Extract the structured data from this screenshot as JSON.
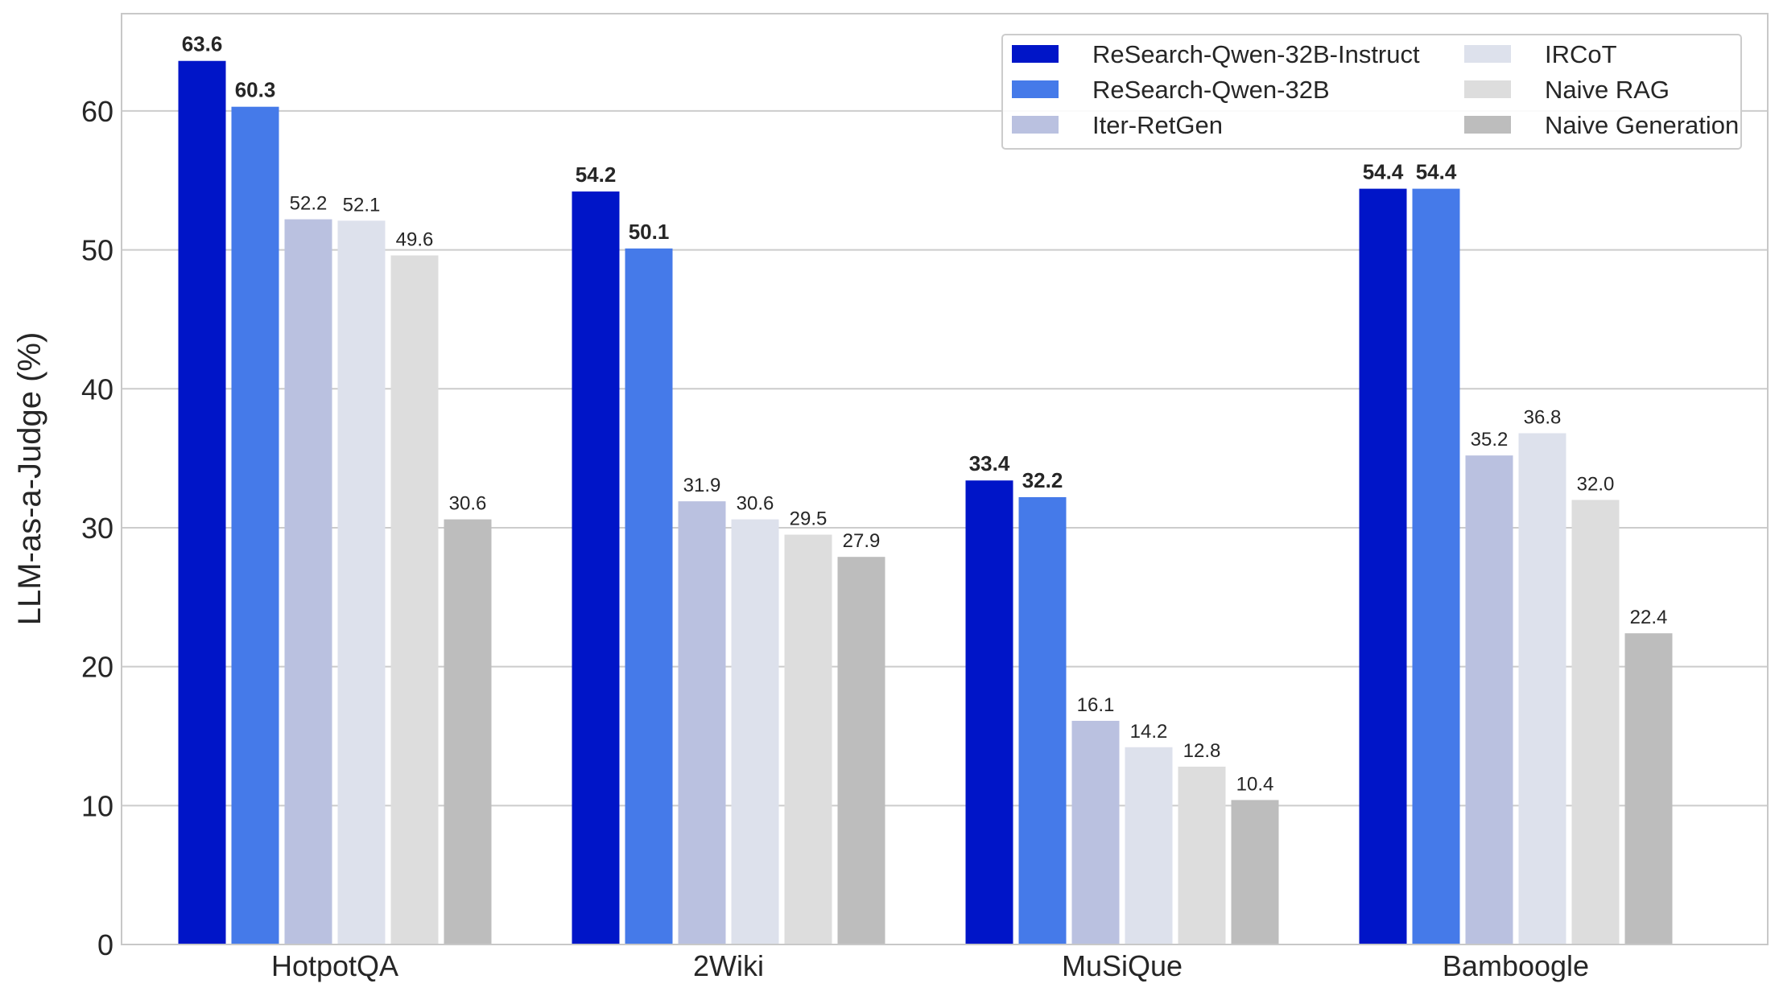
{
  "chart_data": {
    "type": "bar",
    "title": "",
    "xlabel": "",
    "ylabel": "LLM-as-a-Judge (%)",
    "ylim": [
      0,
      67
    ],
    "yticks": [
      0,
      10,
      20,
      30,
      40,
      50,
      60
    ],
    "grid": true,
    "legend_position": "top-right",
    "categories": [
      "HotpotQA",
      "2Wiki",
      "MuSiQue",
      "Bamboogle"
    ],
    "series": [
      {
        "name": "ReSearch-Qwen-32B-Instruct",
        "color": "#0015c8",
        "bold_labels": true,
        "values": [
          63.6,
          54.2,
          33.4,
          54.4
        ],
        "labels": [
          "63.6",
          "54.2",
          "33.4",
          "54.4"
        ]
      },
      {
        "name": "ReSearch-Qwen-32B",
        "color": "#457ae9",
        "bold_labels": true,
        "values": [
          60.3,
          50.1,
          32.2,
          54.4
        ],
        "labels": [
          "60.3",
          "50.1",
          "32.2",
          "54.4"
        ]
      },
      {
        "name": "Iter-RetGen",
        "color": "#bac1e0",
        "bold_labels": false,
        "values": [
          52.2,
          31.9,
          16.1,
          35.2
        ],
        "labels": [
          "52.2",
          "31.9",
          "16.1",
          "35.2"
        ]
      },
      {
        "name": "IRCoT",
        "color": "#dde1ec",
        "bold_labels": false,
        "values": [
          52.1,
          30.6,
          14.2,
          36.8
        ],
        "labels": [
          "52.1",
          "30.6",
          "14.2",
          "36.8"
        ]
      },
      {
        "name": "Naive RAG",
        "color": "#dddddd",
        "bold_labels": false,
        "values": [
          49.6,
          29.5,
          12.8,
          32.0
        ],
        "labels": [
          "49.6",
          "29.5",
          "12.8",
          "32.0"
        ]
      },
      {
        "name": "Naive Generation",
        "color": "#bdbdbd",
        "bold_labels": false,
        "values": [
          30.6,
          27.9,
          10.4,
          22.4
        ],
        "labels": [
          "30.6",
          "27.9",
          "10.4",
          "22.4"
        ]
      }
    ]
  }
}
